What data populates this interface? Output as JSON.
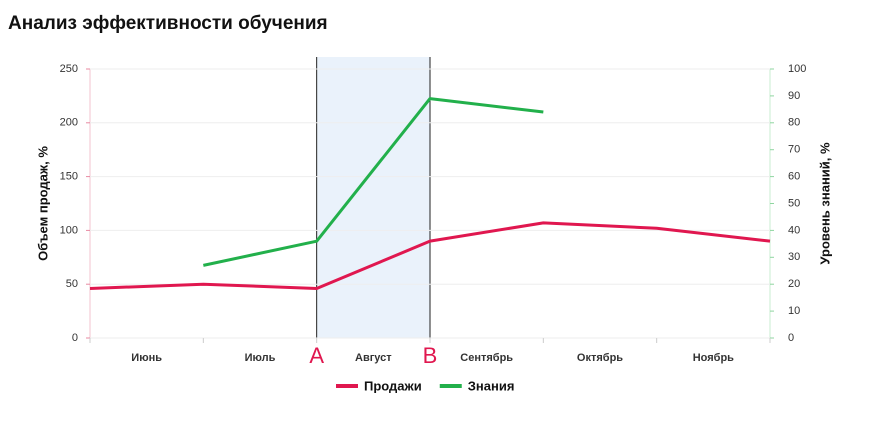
{
  "chart_data": {
    "type": "line",
    "title": "Анализ эффективности обучения",
    "categories": [
      "Июнь",
      "Июль",
      "Август",
      "Сентябрь",
      "Октябрь",
      "Ноябрь",
      null
    ],
    "series": [
      {
        "name": "Продажи",
        "color": "#e0174f",
        "values": [
          46,
          50,
          46,
          90,
          107,
          102,
          90
        ]
      },
      {
        "name": "Знания",
        "color": "#22b04b",
        "axis": "y2",
        "values": [
          null,
          27,
          36,
          89,
          84,
          null,
          null
        ]
      }
    ],
    "ylabel": "Объем продаж, %",
    "y2label": "Уровень знаний, %",
    "ylim": [
      0,
      250
    ],
    "yticks": [
      0,
      50,
      100,
      150,
      200,
      250
    ],
    "y2lim": [
      0,
      100
    ],
    "y2ticks": [
      0,
      10,
      20,
      30,
      40,
      50,
      60,
      70,
      80,
      90,
      100
    ],
    "annotations": [
      "A",
      "B"
    ],
    "legend": "bottom"
  }
}
